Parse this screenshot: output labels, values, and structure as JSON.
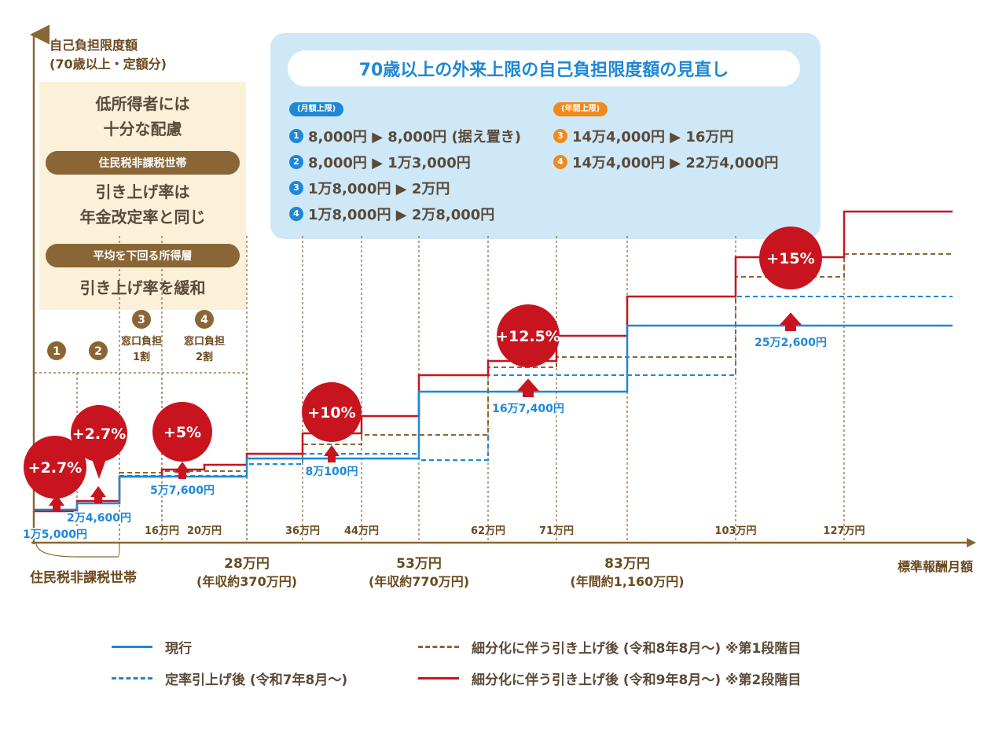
{
  "chart_data": {
    "type": "line",
    "y_axis_label_line1": "自己負担限度額",
    "y_axis_label_line2": "(70歳以上・定額分)",
    "x_axis_label": "標準報酬月額",
    "x_ticks": [
      "16万円",
      "20万円",
      "36万円",
      "44万円",
      "62万円",
      "71万円",
      "103万円",
      "127万円"
    ],
    "x_major": [
      {
        "value": "28万円",
        "note": "(年収約370万円)"
      },
      {
        "value": "53万円",
        "note": "(年収約770万円)"
      },
      {
        "value": "83万円",
        "note": "(年間約1,160万円)"
      }
    ],
    "x_region_label": "住民税非課税世帯",
    "series": [
      {
        "name": "現行",
        "color": "#1e88d6",
        "style": "solid"
      },
      {
        "name": "定率引上げ後 (令和7年8月〜)",
        "color": "#1e88d6",
        "style": "dashed"
      },
      {
        "name": "細分化に伴う引き上げ後 (令和8年8月〜) ※第1段階目",
        "color": "#8a6636",
        "style": "dashed"
      },
      {
        "name": "細分化に伴う引き上げ後 (令和9年8月〜) ※第2段階目",
        "color": "#c8141e",
        "style": "solid"
      }
    ],
    "current_values": [
      "1万5,000円",
      "2万4,600円",
      "5万7,600円",
      "8万100円",
      "16万7,400円",
      "25万2,600円"
    ],
    "increase_badges": [
      "+2.7%",
      "+2.7%",
      "+5%",
      "+10%",
      "+12.5%",
      "+15%"
    ],
    "segment_markers": [
      {
        "num": "1",
        "label": ""
      },
      {
        "num": "2",
        "label": ""
      },
      {
        "num": "3",
        "label_line1": "窓口負担",
        "label_line2": "1割"
      },
      {
        "num": "4",
        "label_line1": "窓口負担",
        "label_line2": "2割"
      }
    ]
  },
  "panel": {
    "title": "70歳以上の外来上限の自己負担限度額の見直し",
    "monthly_label": "(月額上限)",
    "annual_label": "(年間上限)",
    "monthly_items": [
      {
        "num": "1",
        "text": "8,000円 ▶ 8,000円 (据え置き)"
      },
      {
        "num": "2",
        "text": "8,000円 ▶ 1万3,000円"
      },
      {
        "num": "3",
        "text": "1万8,000円 ▶ 2万円"
      },
      {
        "num": "4",
        "text": "1万8,000円 ▶ 2万8,000円"
      }
    ],
    "annual_items": [
      {
        "num": "3",
        "text": "14万4,000円 ▶ 16万円"
      },
      {
        "num": "4",
        "text": "14万4,000円 ▶ 22万4,000円"
      }
    ]
  },
  "policy": {
    "text1_line1": "低所得者には",
    "text1_line2": "十分な配慮",
    "bar1": "住民税非課税世帯",
    "text2_line1": "引き上げ率は",
    "text2_line2": "年金改定率と同じ",
    "bar2": "平均を下回る所得層",
    "text3": "引き上げ率を緩和"
  },
  "colors": {
    "blue": "#1e88d6",
    "brown": "#8a6636",
    "red": "#c8141e",
    "orange": "#ef8a1c",
    "panel_bg": "#cfe8f7",
    "beige": "#fbf0d8"
  }
}
